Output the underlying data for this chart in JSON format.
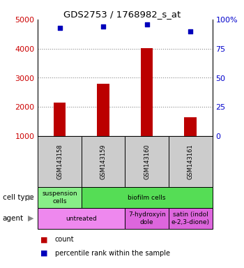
{
  "title": "GDS2753 / 1768982_s_at",
  "samples": [
    "GSM143158",
    "GSM143159",
    "GSM143160",
    "GSM143161"
  ],
  "counts": [
    2150,
    2800,
    4020,
    1650
  ],
  "percentile_pct": [
    93,
    94,
    96,
    90
  ],
  "ylim_left": [
    1000,
    5000
  ],
  "ylim_right": [
    0,
    100
  ],
  "yticks_left": [
    1000,
    2000,
    3000,
    4000,
    5000
  ],
  "yticks_right": [
    0,
    25,
    50,
    75,
    100
  ],
  "bar_color": "#bb0000",
  "dot_color": "#0000bb",
  "bar_width": 0.28,
  "cell_type_row": [
    {
      "label": "suspension\ncells",
      "span": [
        0,
        1
      ],
      "color": "#88ee88"
    },
    {
      "label": "biofilm cells",
      "span": [
        1,
        4
      ],
      "color": "#55dd55"
    }
  ],
  "agent_row": [
    {
      "label": "untreated",
      "span": [
        0,
        2
      ],
      "color": "#ee88ee"
    },
    {
      "label": "7-hydroxyin\ndole",
      "span": [
        2,
        3
      ],
      "color": "#dd66dd"
    },
    {
      "label": "satin (indol\ne-2,3-dione)",
      "span": [
        3,
        4
      ],
      "color": "#dd66dd"
    }
  ],
  "tick_label_color_left": "#cc0000",
  "tick_label_color_right": "#0000cc",
  "grid_color": "#888888",
  "sample_box_color": "#cccccc"
}
